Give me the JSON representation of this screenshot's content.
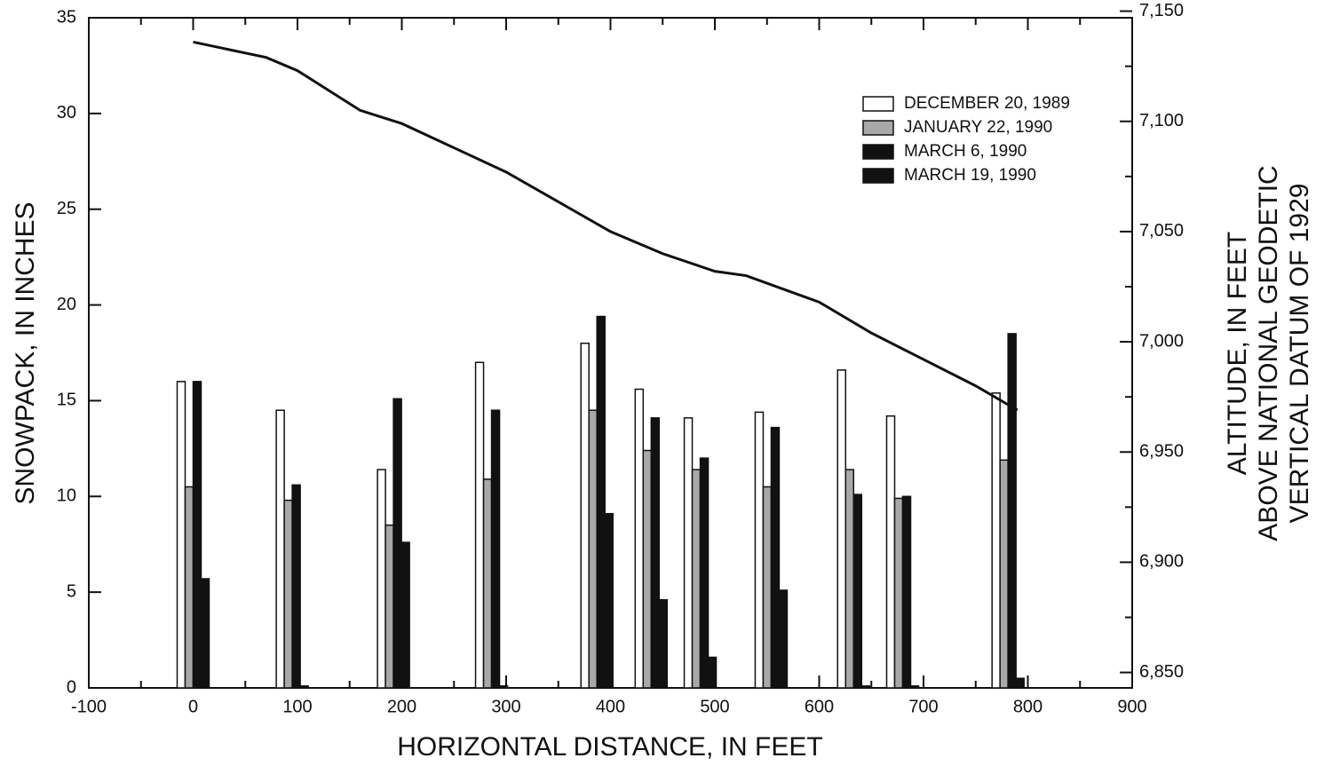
{
  "chart_data": {
    "type": "bar",
    "xlabel": "HORIZONTAL DISTANCE, IN FEET",
    "ylabel": "SNOWPACK, IN INCHES",
    "y2label": [
      "ALTITUDE, IN FEET",
      "ABOVE NATIONAL GEODETIC",
      "VERTICAL DATUM OF 1929"
    ],
    "xlim": [
      -100,
      900
    ],
    "xticks": [
      -100,
      0,
      100,
      200,
      300,
      400,
      500,
      600,
      700,
      800,
      900
    ],
    "xminorticks": [
      -50,
      50,
      150,
      250,
      350,
      450,
      550,
      650,
      750,
      850
    ],
    "ylim": [
      0,
      35
    ],
    "yticks": [
      0,
      5,
      10,
      15,
      20,
      25,
      30,
      35
    ],
    "y2lim": [
      6843,
      7147
    ],
    "y2ticks": [
      {
        "value": 6850,
        "label": "6,850"
      },
      {
        "value": 6900,
        "label": "6,900"
      },
      {
        "value": 6950,
        "label": "6,950"
      },
      {
        "value": 7000,
        "label": "7,000"
      },
      {
        "value": 7050,
        "label": "7,050"
      },
      {
        "value": 7100,
        "label": "7,100"
      },
      {
        "value": 7150,
        "label": "7,150"
      }
    ],
    "y2minorticks": [
      6875,
      6925,
      6975,
      7025,
      7075,
      7125
    ],
    "legend": "upper right",
    "x": [
      0,
      95,
      192,
      286,
      387,
      439,
      486,
      554,
      633,
      680,
      781
    ],
    "series": [
      {
        "name": "DECEMBER 20, 1989",
        "color": "#ffffff",
        "values": [
          16,
          14.5,
          11.4,
          17,
          18,
          15.6,
          14.1,
          14.4,
          16.6,
          14.2,
          15.4
        ]
      },
      {
        "name": "JANUARY 22, 1990",
        "color": "#a8a8a8",
        "values": [
          10.5,
          9.8,
          8.5,
          10.9,
          14.5,
          12.4,
          11.4,
          10.5,
          11.4,
          9.9,
          11.9
        ]
      },
      {
        "name": "MARCH 6, 1990",
        "color": "#111111",
        "values": [
          16,
          10.6,
          15.1,
          14.5,
          19.4,
          14.1,
          12,
          13.6,
          10.1,
          10,
          18.5
        ]
      },
      {
        "name": "MARCH 19, 1990",
        "color": "#111111",
        "values": [
          5.7,
          0.1,
          7.6,
          0.1,
          9.1,
          4.6,
          1.6,
          5.1,
          0.1,
          0.1,
          0.5
        ]
      }
    ],
    "line_series": {
      "axis": "y2",
      "color": "#111111",
      "x": [
        0,
        70,
        100,
        160,
        200,
        300,
        400,
        450,
        500,
        530,
        600,
        650,
        700,
        750,
        790
      ],
      "values": [
        7136,
        7129,
        7123,
        7105,
        7099,
        7077,
        7050,
        7040,
        7032,
        7030,
        7018,
        7004,
        6992,
        6980,
        6969
      ]
    }
  }
}
